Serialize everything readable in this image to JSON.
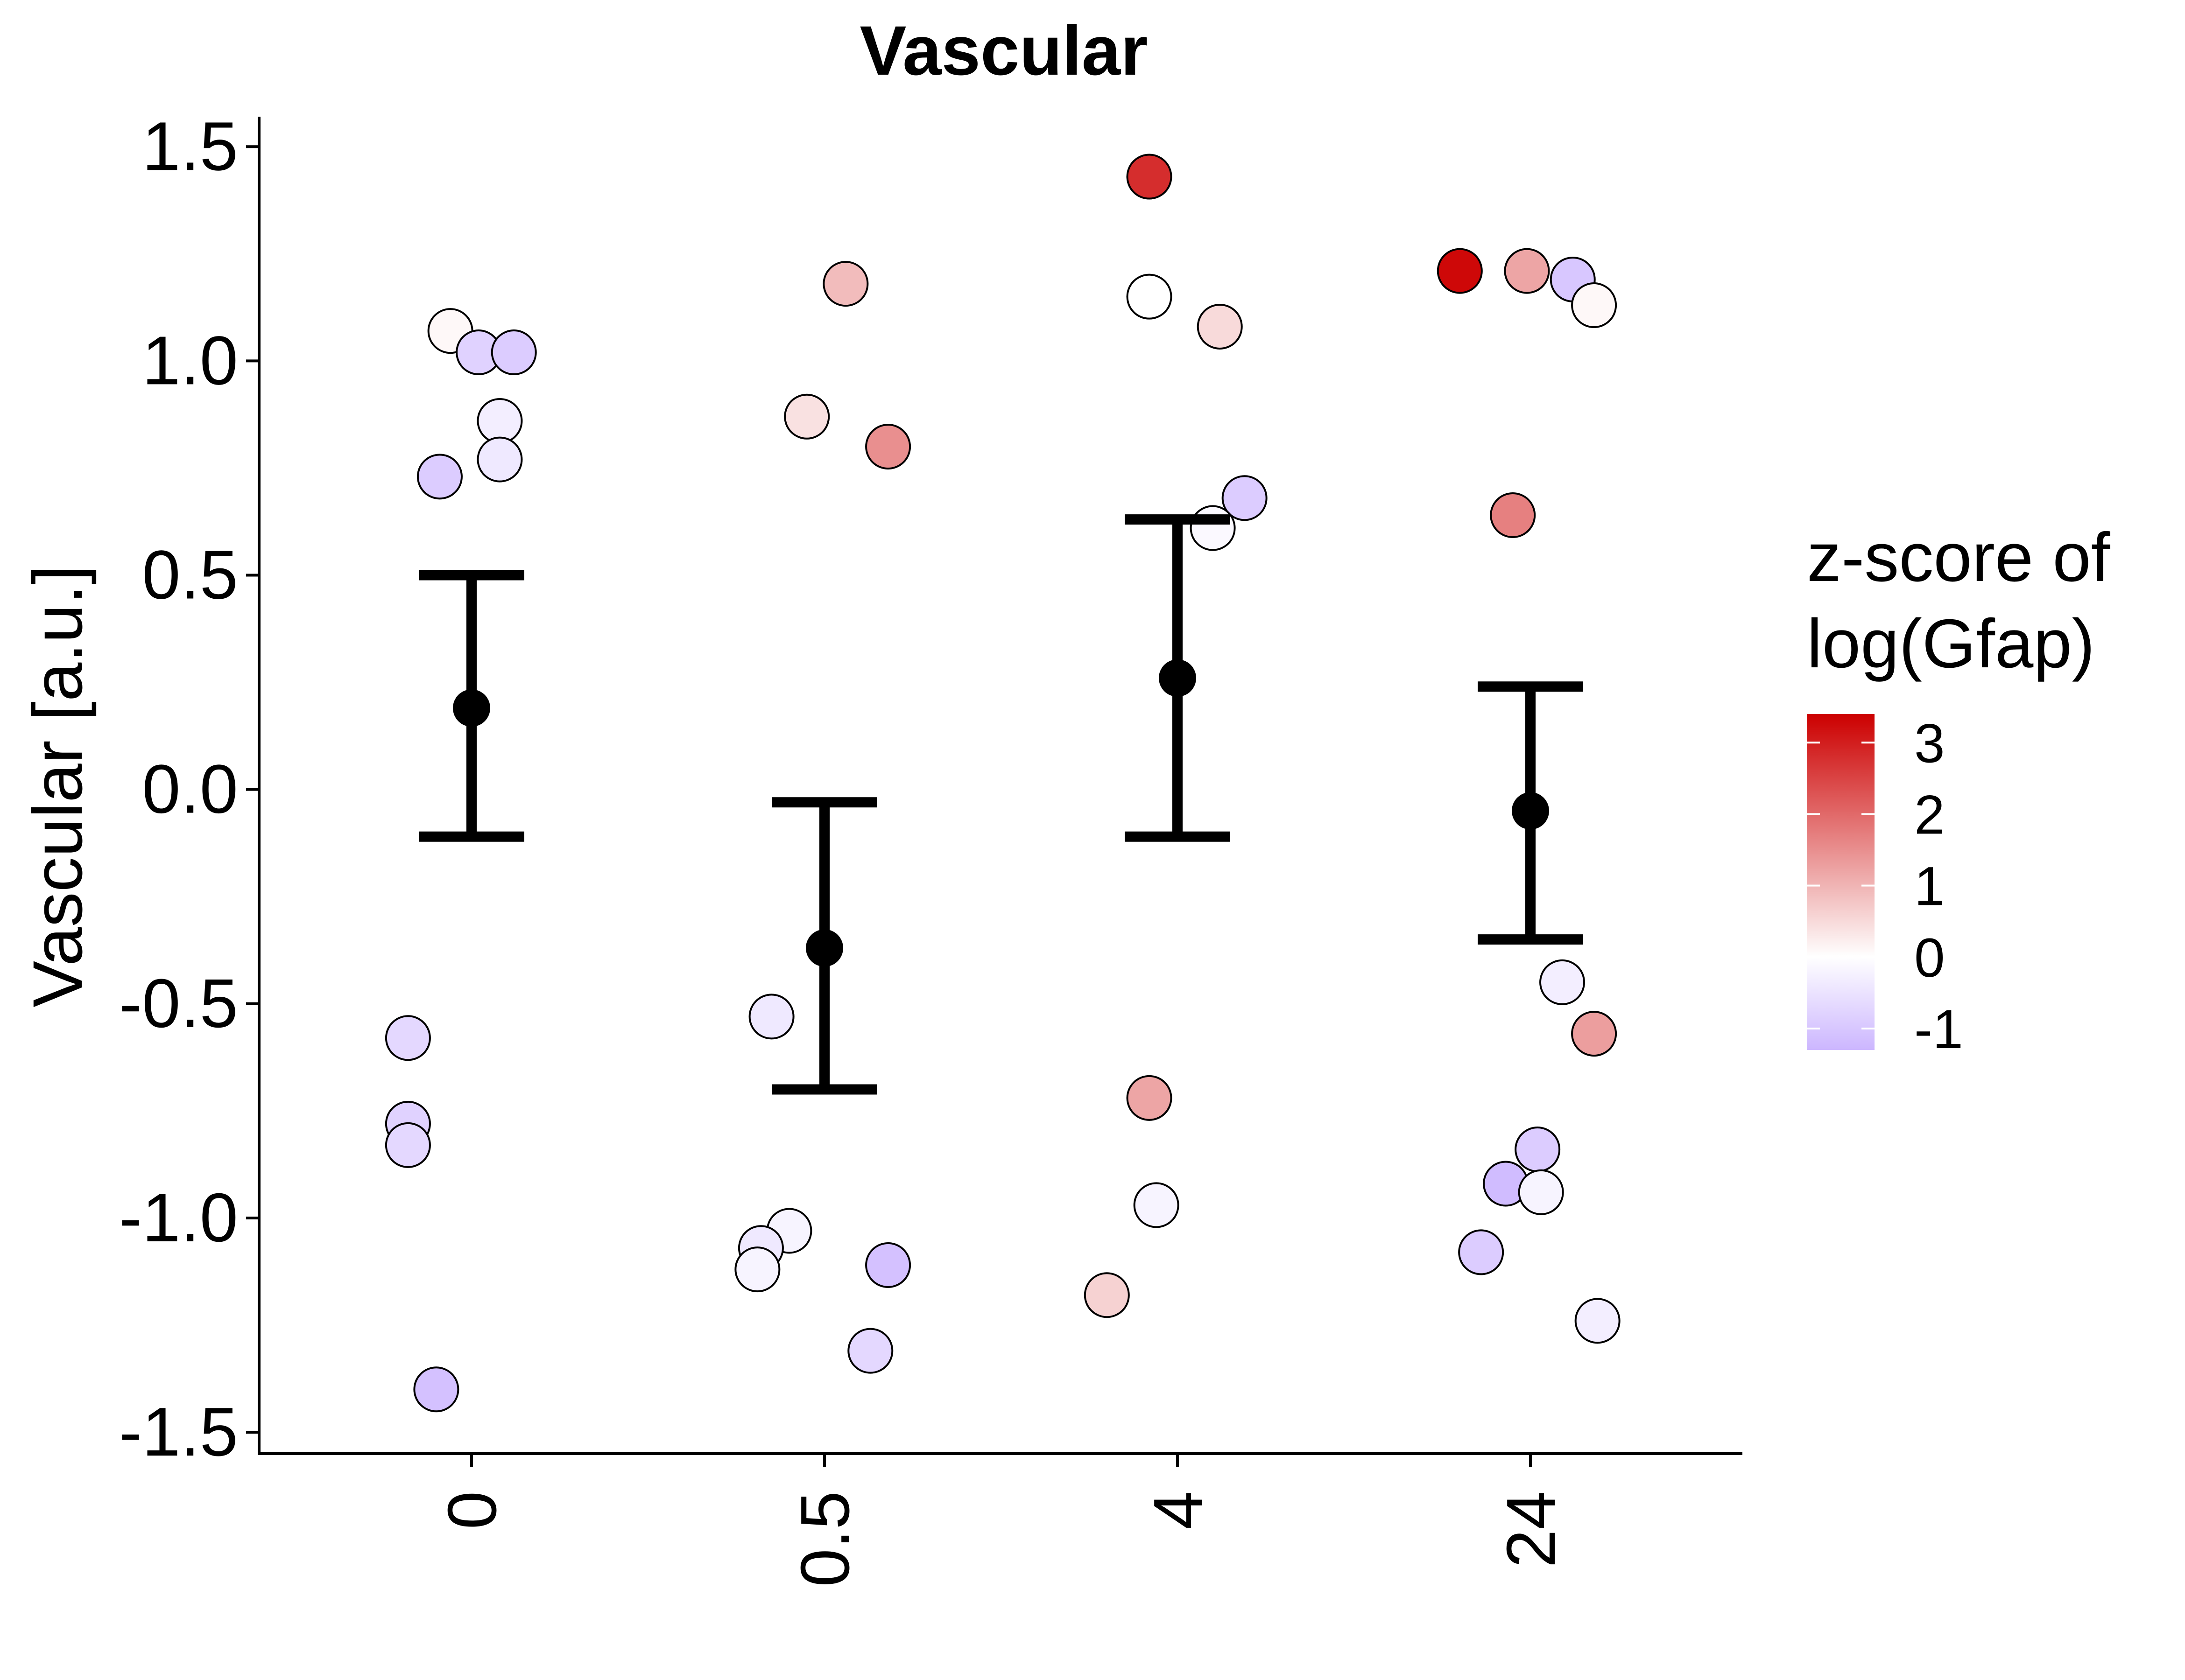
{
  "chart_data": {
    "type": "scatter",
    "title": "Vascular",
    "xlabel": "",
    "ylabel": "Vascular [a.u.]",
    "ylim": [
      -1.55,
      1.57
    ],
    "yticks": [
      "-1.5",
      "-1.0",
      "-0.5",
      "0.0",
      "0.5",
      "1.0",
      "1.5"
    ],
    "ytick_values": [
      -1.5,
      -1.0,
      -0.5,
      0.0,
      0.5,
      1.0,
      1.5
    ],
    "categories": [
      "0",
      "0.5",
      "4",
      "24"
    ],
    "grid": false,
    "summary": [
      {
        "category": "0",
        "mean": 0.19,
        "lower": -0.11,
        "upper": 0.5
      },
      {
        "category": "0.5",
        "mean": -0.37,
        "lower": -0.7,
        "upper": -0.03
      },
      {
        "category": "4",
        "mean": 0.26,
        "lower": -0.11,
        "upper": 0.63
      },
      {
        "category": "24",
        "mean": -0.05,
        "lower": -0.35,
        "upper": 0.24
      }
    ],
    "points": [
      {
        "category": "0",
        "jitter": -0.06,
        "y": 1.07,
        "z": 0.1
      },
      {
        "category": "0",
        "jitter": 0.02,
        "y": 1.02,
        "z": -0.8
      },
      {
        "category": "0",
        "jitter": 0.12,
        "y": 1.02,
        "z": -0.9
      },
      {
        "category": "0",
        "jitter": 0.08,
        "y": 0.86,
        "z": -0.3
      },
      {
        "category": "0",
        "jitter": 0.08,
        "y": 0.77,
        "z": -0.4
      },
      {
        "category": "0",
        "jitter": -0.09,
        "y": 0.73,
        "z": -0.9
      },
      {
        "category": "0",
        "jitter": -0.18,
        "y": -0.58,
        "z": -0.7
      },
      {
        "category": "0",
        "jitter": -0.18,
        "y": -0.78,
        "z": -0.8
      },
      {
        "category": "0",
        "jitter": -0.18,
        "y": -0.83,
        "z": -0.7
      },
      {
        "category": "0",
        "jitter": -0.1,
        "y": -1.4,
        "z": -1.1
      },
      {
        "category": "0.5",
        "jitter": 0.06,
        "y": 1.18,
        "z": 0.9
      },
      {
        "category": "0.5",
        "jitter": -0.05,
        "y": 0.87,
        "z": 0.4
      },
      {
        "category": "0.5",
        "jitter": 0.18,
        "y": 0.8,
        "z": 1.5
      },
      {
        "category": "0.5",
        "jitter": -0.15,
        "y": -0.53,
        "z": -0.4
      },
      {
        "category": "0.5",
        "jitter": -0.1,
        "y": -1.03,
        "z": -0.2
      },
      {
        "category": "0.5",
        "jitter": -0.18,
        "y": -1.07,
        "z": -0.4
      },
      {
        "category": "0.5",
        "jitter": -0.19,
        "y": -1.12,
        "z": -0.2
      },
      {
        "category": "0.5",
        "jitter": 0.18,
        "y": -1.11,
        "z": -1.1
      },
      {
        "category": "0.5",
        "jitter": 0.13,
        "y": -1.31,
        "z": -0.7
      },
      {
        "category": "4",
        "jitter": -0.08,
        "y": 1.43,
        "z": 2.8
      },
      {
        "category": "4",
        "jitter": -0.08,
        "y": 1.15,
        "z": 0.0
      },
      {
        "category": "4",
        "jitter": 0.12,
        "y": 1.08,
        "z": 0.5
      },
      {
        "category": "4",
        "jitter": 0.19,
        "y": 0.68,
        "z": -0.9
      },
      {
        "category": "4",
        "jitter": 0.1,
        "y": 0.61,
        "z": -0.1
      },
      {
        "category": "4",
        "jitter": -0.08,
        "y": -0.72,
        "z": 1.2
      },
      {
        "category": "4",
        "jitter": -0.06,
        "y": -0.97,
        "z": -0.2
      },
      {
        "category": "4",
        "jitter": -0.2,
        "y": -1.18,
        "z": 0.6
      },
      {
        "category": "24",
        "jitter": -0.2,
        "y": 1.21,
        "z": 3.3
      },
      {
        "category": "24",
        "jitter": -0.01,
        "y": 1.21,
        "z": 1.2
      },
      {
        "category": "24",
        "jitter": 0.12,
        "y": 1.19,
        "z": -1.0
      },
      {
        "category": "24",
        "jitter": 0.18,
        "y": 1.13,
        "z": 0.1
      },
      {
        "category": "24",
        "jitter": -0.05,
        "y": 0.64,
        "z": 1.7
      },
      {
        "category": "24",
        "jitter": 0.09,
        "y": -0.45,
        "z": -0.3
      },
      {
        "category": "24",
        "jitter": 0.18,
        "y": -0.57,
        "z": 1.3
      },
      {
        "category": "24",
        "jitter": 0.02,
        "y": -0.84,
        "z": -0.9
      },
      {
        "category": "24",
        "jitter": -0.07,
        "y": -0.92,
        "z": -1.2
      },
      {
        "category": "24",
        "jitter": 0.03,
        "y": -0.94,
        "z": -0.2
      },
      {
        "category": "24",
        "jitter": -0.14,
        "y": -1.08,
        "z": -0.9
      },
      {
        "category": "24",
        "jitter": 0.19,
        "y": -1.24,
        "z": -0.3
      }
    ],
    "legend": {
      "title_line1": "z-score of",
      "title_line2": "log(Gfap)",
      "ticks": [
        "3",
        "2",
        "1",
        "0",
        "-1"
      ],
      "tick_values": [
        3,
        2,
        1,
        0,
        -1
      ],
      "zlim": [
        -1.3,
        3.4
      ],
      "low_color": "#CCB6FF",
      "mid_color": "#FFFFFF",
      "high_color": "#CC0000",
      "placement": "right"
    }
  }
}
